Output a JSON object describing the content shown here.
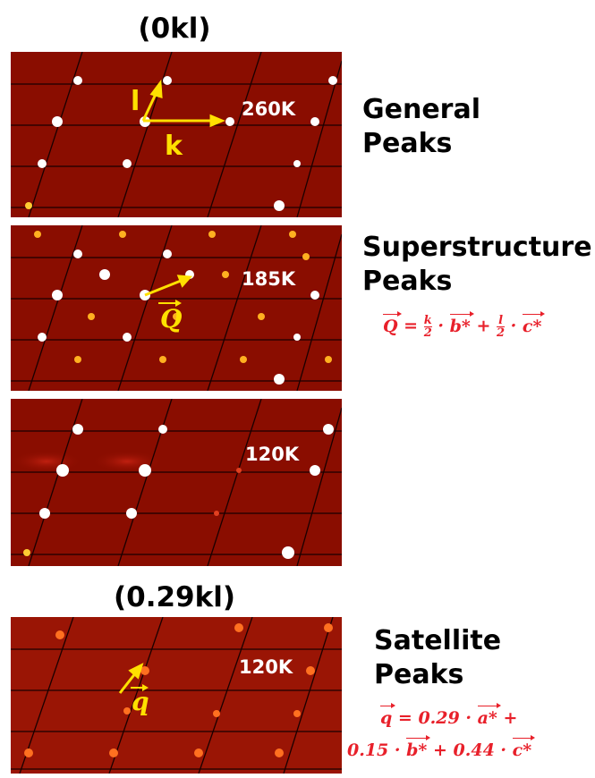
{
  "headings": {
    "top": "(0kl)",
    "bottom": "(0.29kl)"
  },
  "panels": [
    {
      "temperature": "260K"
    },
    {
      "temperature": "185K"
    },
    {
      "temperature": "120K"
    },
    {
      "temperature": "120K"
    }
  ],
  "descriptions": {
    "general_line1": "General",
    "general_line2": "Peaks",
    "super_line1": "Superstructure",
    "super_line2": "Peaks",
    "satellite_line1": "Satellite",
    "satellite_line2": "Peaks"
  },
  "axis_labels": {
    "l": "l",
    "k": "k",
    "Q": "Q",
    "q": "q"
  },
  "formulas": {
    "Q": {
      "lhs": "Q",
      "eq": " = ",
      "k": "k",
      "two1": "2",
      "b": "b*",
      "plus": " + ",
      "l": "l",
      "two2": "2",
      "c": "c*",
      "dot": " · "
    },
    "q_line1": {
      "lhs": "q",
      "eq": " = 0.29 · ",
      "a": "a*",
      "plus": " +"
    },
    "q_line2": {
      "coef_b": "0.15 · ",
      "b": "b*",
      "plus": " + 0.44 · ",
      "c": "c*"
    }
  },
  "colors": {
    "background": "#8a0d00",
    "accent": "#ffe000",
    "formula": "#e8202a"
  }
}
